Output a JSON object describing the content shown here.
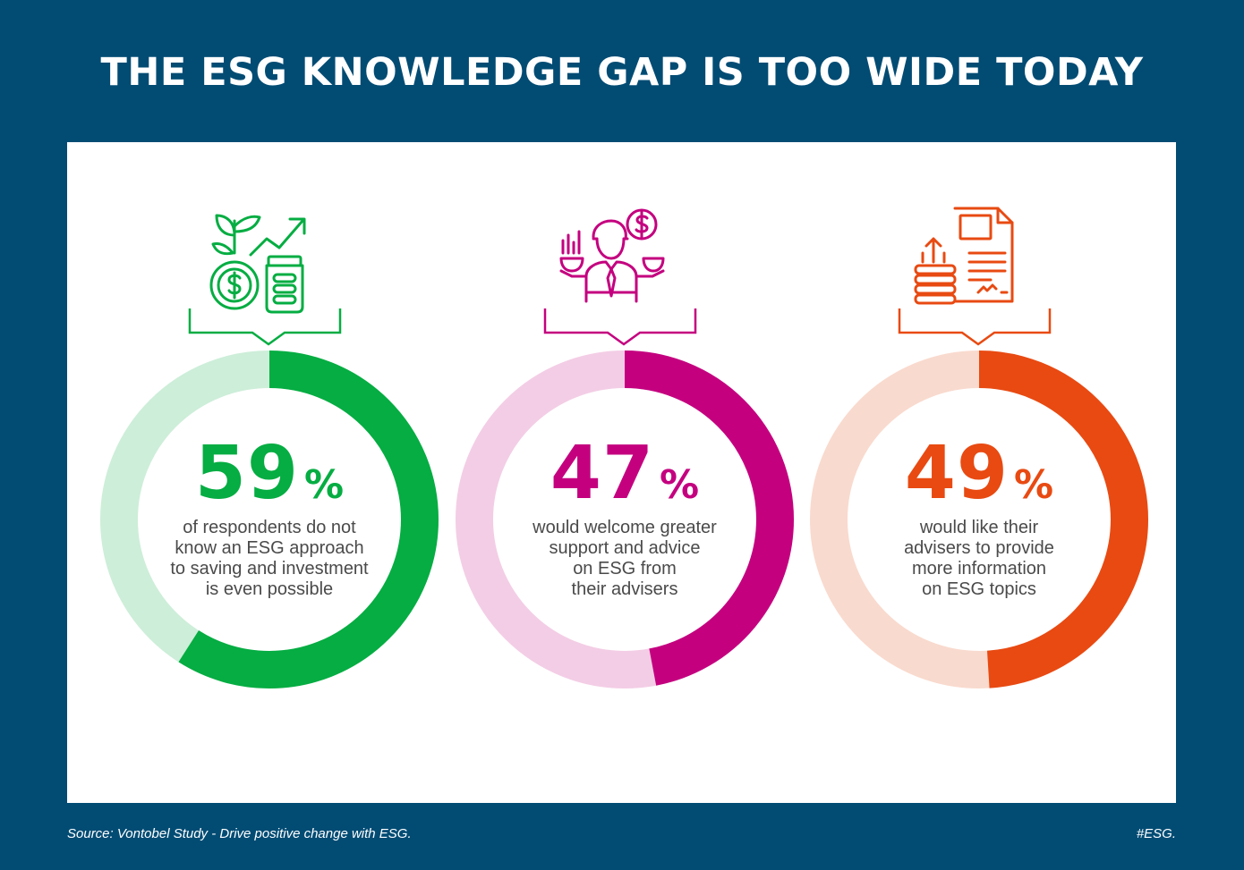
{
  "title": "THE ESG KNOWLEDGE GAP IS TOO WIDE TODAY",
  "percent_sign": "%",
  "chart_data": [
    {
      "type": "donut",
      "value": 59,
      "label": "59",
      "description_lines": [
        "of respondents do not",
        "know an ESG approach",
        "to saving and investment",
        "is even possible"
      ],
      "color": "#05ad42",
      "track_color": "#cdeed9",
      "icon": "plant-money-growth-icon"
    },
    {
      "type": "donut",
      "value": 47,
      "label": "47",
      "description_lines": [
        "would welcome greater",
        "support and advice",
        "on ESG from",
        "their advisers"
      ],
      "color": "#c4007f",
      "track_color": "#f3cde5",
      "icon": "adviser-person-icon"
    },
    {
      "type": "donut",
      "value": 49,
      "label": "49",
      "description_lines": [
        "would like their",
        "advisers to provide",
        "more information",
        "on ESG topics"
      ],
      "color": "#e84a12",
      "track_color": "#f9dace",
      "icon": "document-report-icon"
    }
  ],
  "footer": {
    "source": "Source: Vontobel Study - Drive positive change with ESG.",
    "hashtag": "#ESG."
  }
}
